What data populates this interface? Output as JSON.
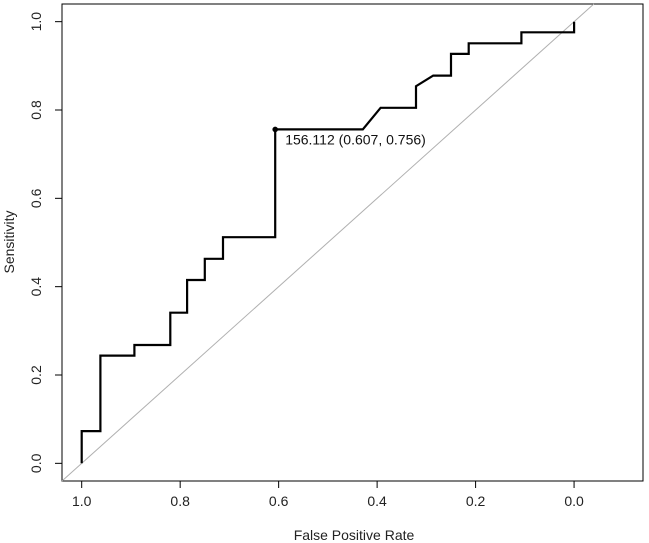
{
  "chart_data": {
    "type": "line",
    "title": "",
    "xlabel": "False Positive Rate",
    "ylabel": "Sensitivity",
    "xlim": [
      1.04,
      -0.14
    ],
    "ylim": [
      -0.04,
      1.04
    ],
    "x_reversed": true,
    "x_ticks": [
      1.0,
      0.8,
      0.6,
      0.4,
      0.2,
      0.0
    ],
    "x_tick_labels": [
      "1.0",
      "0.8",
      "0.6",
      "0.4",
      "0.2",
      "0.0"
    ],
    "y_ticks": [
      0.0,
      0.2,
      0.4,
      0.6,
      0.8,
      1.0
    ],
    "y_tick_labels": [
      "0.0",
      "0.2",
      "0.4",
      "0.6",
      "0.8",
      "1.0"
    ],
    "grid": false,
    "legend": "none",
    "series": [
      {
        "name": "ROC curve",
        "style": "step",
        "color": "#000000",
        "points": [
          [
            1.0,
            0.0
          ],
          [
            1.0,
            0.073
          ],
          [
            0.962,
            0.073
          ],
          [
            0.962,
            0.098
          ],
          [
            0.962,
            0.244
          ],
          [
            0.893,
            0.244
          ],
          [
            0.893,
            0.268
          ],
          [
            0.82,
            0.268
          ],
          [
            0.82,
            0.341
          ],
          [
            0.786,
            0.341
          ],
          [
            0.786,
            0.415
          ],
          [
            0.75,
            0.415
          ],
          [
            0.75,
            0.463
          ],
          [
            0.713,
            0.463
          ],
          [
            0.713,
            0.512
          ],
          [
            0.607,
            0.512
          ],
          [
            0.607,
            0.756
          ],
          [
            0.429,
            0.756
          ],
          [
            0.393,
            0.805
          ],
          [
            0.321,
            0.805
          ],
          [
            0.321,
            0.854
          ],
          [
            0.286,
            0.878
          ],
          [
            0.25,
            0.878
          ],
          [
            0.25,
            0.927
          ],
          [
            0.214,
            0.927
          ],
          [
            0.214,
            0.951
          ],
          [
            0.107,
            0.951
          ],
          [
            0.107,
            0.976
          ],
          [
            0.0,
            0.976
          ],
          [
            0.0,
            1.0
          ]
        ]
      },
      {
        "name": "reference diagonal",
        "style": "line",
        "color": "#b0b0b0",
        "points": [
          [
            1.04,
            -0.04
          ],
          [
            -0.04,
            1.04
          ]
        ]
      }
    ],
    "annotations": [
      {
        "label": "156.112 (0.607, 0.756)",
        "x": 0.607,
        "y": 0.756,
        "marker": "point"
      }
    ]
  }
}
